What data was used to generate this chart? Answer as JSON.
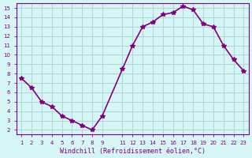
{
  "x": [
    1,
    2,
    3,
    4,
    5,
    6,
    7,
    8,
    9,
    11,
    12,
    13,
    14,
    15,
    16,
    17,
    18,
    19,
    20,
    21,
    22,
    23
  ],
  "y": [
    7.5,
    6.5,
    5.0,
    4.5,
    3.5,
    3.0,
    2.5,
    2.0,
    3.5,
    8.5,
    11.0,
    13.0,
    13.5,
    14.3,
    14.5,
    15.2,
    14.8,
    13.3,
    13.0,
    11.0,
    9.5,
    8.3
  ],
  "line_color": "#800080",
  "marker": "*",
  "marker_size": 4,
  "bg_color": "#d6f5f5",
  "grid_color": "#b0d8d8",
  "xlabel": "Windchill (Refroidissement éolien,°C)",
  "xlabel_color": "#800080",
  "tick_color": "#800080",
  "yticks": [
    2,
    3,
    4,
    5,
    6,
    7,
    8,
    9,
    10,
    11,
    12,
    13,
    14,
    15
  ],
  "xlim": [
    0.5,
    23.5
  ],
  "ylim": [
    1.5,
    15.5
  ]
}
